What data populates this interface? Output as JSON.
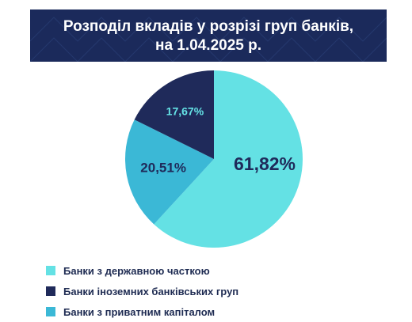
{
  "header": {
    "title_line1": "Розподіл вкладів у розрізі груп банків,",
    "title_line2": "на 1.04.2025 р."
  },
  "chart_data": {
    "type": "pie",
    "title": "Розподіл вкладів у розрізі груп банків, на 1.04.2025 р.",
    "slices": [
      {
        "name": "Банки з державною часткою",
        "value": 61.82,
        "label": "61,82%",
        "color": "#64e1e4"
      },
      {
        "name": "Банки з приватним капіталом",
        "value": 20.51,
        "label": "20,51%",
        "color": "#3bb8d6"
      },
      {
        "name": "Банки іноземних банківських груп",
        "value": 17.67,
        "label": "17,67%",
        "color": "#1f2a5a"
      }
    ],
    "legend_placement": "bottom-left"
  },
  "legend": {
    "items": [
      {
        "label": "Банки з державною часткою",
        "color": "#64e1e4"
      },
      {
        "label": "Банки іноземних банківських груп",
        "color": "#1f2a5a"
      },
      {
        "label": "Банки з приватним капіталом",
        "color": "#3bb8d6"
      }
    ]
  }
}
